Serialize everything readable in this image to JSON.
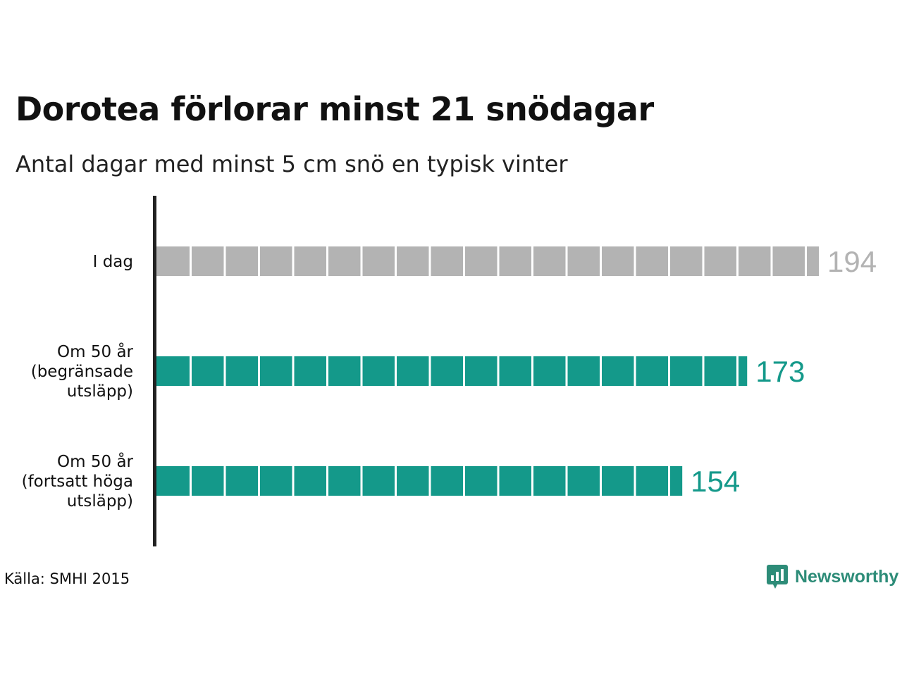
{
  "title": "Dorotea förlorar minst 21 snödagar",
  "subtitle": "Antal dagar med minst 5 cm snö en typisk vinter",
  "source": "Källa: SMHI 2015",
  "brand": {
    "name": "Newsworthy",
    "icon": "newsworthy-logo-icon",
    "color": "#2d8c78"
  },
  "chart_data": {
    "type": "bar",
    "orientation": "horizontal",
    "title": "Dorotea förlorar minst 21 snödagar",
    "subtitle": "Antal dagar med minst 5 cm snö en typisk vinter",
    "categories": [
      [
        "I dag"
      ],
      [
        "Om 50 år",
        "(begränsade",
        "utsläpp)"
      ],
      [
        "Om 50 år",
        "(fortsatt höga",
        "utsläpp)"
      ]
    ],
    "values": [
      194,
      173,
      154
    ],
    "value_labels": [
      "194",
      "173",
      "154"
    ],
    "colors": [
      "#b3b3b3",
      "#14998a",
      "#14998a"
    ],
    "label_colors": [
      "#b3b3b3",
      "#14998a",
      "#14998a"
    ],
    "xlim": [
      0,
      194
    ],
    "grid": false,
    "legend": "none"
  }
}
